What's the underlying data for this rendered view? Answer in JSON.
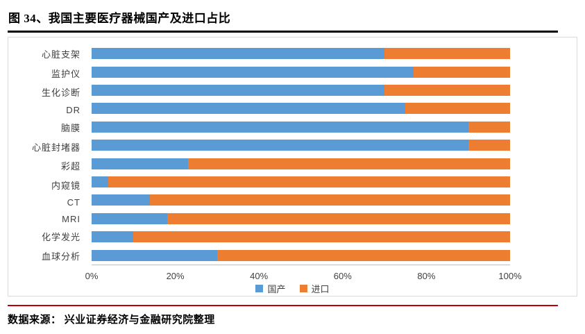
{
  "title": "图 34、我国主要医疗器械国产及进口占比",
  "source": "数据来源： 兴业证券经济与金融研究院整理",
  "accent_colors": {
    "title_rule": "#000000",
    "source_rule": "#c00000",
    "domestic_blue": "#5b9bd5",
    "import_orange": "#ed7d31"
  },
  "chart_data": {
    "type": "bar",
    "orientation": "horizontal",
    "stacked": true,
    "categories": [
      "心脏支架",
      "监护仪",
      "生化诊断",
      "DR",
      "脑膜",
      "心脏封堵器",
      "彩超",
      "内窥镜",
      "CT",
      "MRI",
      "化学发光",
      "血球分析"
    ],
    "series": [
      {
        "name": "国产",
        "key": "domestic",
        "color": "#5b9bd5",
        "values": [
          70,
          77,
          70,
          75,
          90,
          90,
          23,
          4,
          14,
          18,
          10,
          30
        ]
      },
      {
        "name": "进口",
        "key": "import",
        "color": "#ed7d31",
        "values": [
          30,
          23,
          30,
          25,
          10,
          10,
          77,
          96,
          86,
          82,
          90,
          70
        ]
      }
    ],
    "xlim": [
      0,
      100
    ],
    "x_ticks": [
      {
        "value": 0,
        "label": "0%"
      },
      {
        "value": 20,
        "label": "20%"
      },
      {
        "value": 40,
        "label": "40%"
      },
      {
        "value": 60,
        "label": "60%"
      },
      {
        "value": 80,
        "label": "80%"
      },
      {
        "value": 100,
        "label": "100%"
      }
    ],
    "grid": false,
    "legend_position": "bottom"
  }
}
